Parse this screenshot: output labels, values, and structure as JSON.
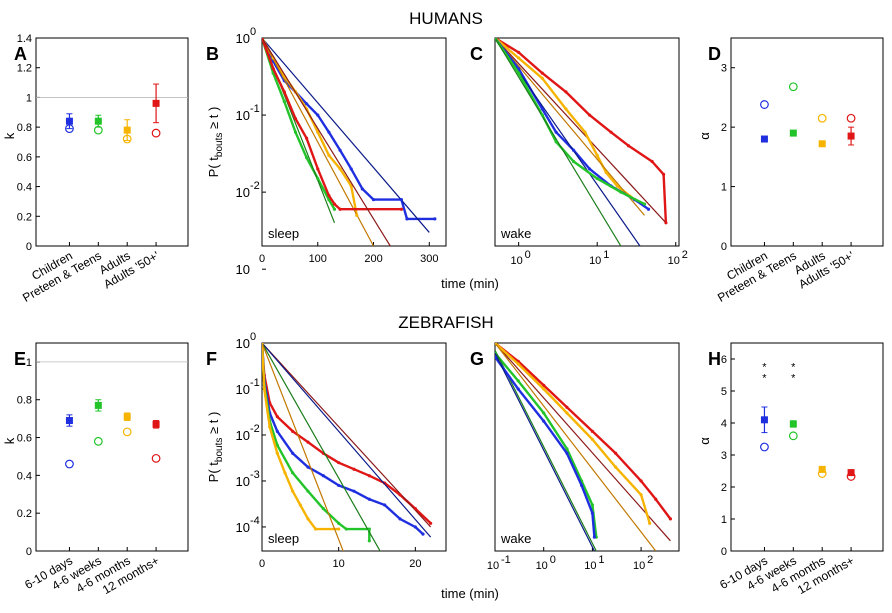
{
  "titles": {
    "top": "HUMANS",
    "bottom": "ZEBRAFISH"
  },
  "colors": {
    "blue": "#1f2fe0",
    "green": "#22c42a",
    "orange": "#f6b400",
    "red": "#e01616",
    "navy": "#0a1a8a",
    "darkgreen": "#1a7d1a",
    "darkorange": "#c27800",
    "darkred": "#8b1a1a"
  },
  "chart_data": [
    {
      "id": "A",
      "type": "scatter",
      "ylabel": "k",
      "ylim": [
        0,
        1.4
      ],
      "yticks": [
        "0",
        "0.2",
        "0.4",
        "0.6",
        "0.8",
        "1",
        "1.2",
        "1.4"
      ],
      "reference_line": 1,
      "categories": [
        "Children",
        "Preteen & Teens",
        "Adults",
        "Adults '50+'"
      ],
      "series": [
        {
          "name": "filled",
          "values": [
            0.84,
            0.84,
            0.78,
            0.96
          ],
          "err": [
            0.05,
            0.04,
            0.07,
            0.13
          ]
        },
        {
          "name": "open",
          "values": [
            0.79,
            0.78,
            0.72,
            0.76
          ]
        }
      ]
    },
    {
      "id": "B",
      "type": "line",
      "inset": "sleep",
      "ylabel_main": "P( t",
      "ylabel_sub": "bouts",
      "ylabel_end": " ≥ t )",
      "xlabel": "time (min)",
      "xlim": [
        0,
        330
      ],
      "xticks": [
        "0",
        "100",
        "200",
        "300"
      ],
      "yscale": "log",
      "ylim": [
        0.002,
        1
      ],
      "yticks": [
        "10",
        "10",
        "10",
        "10"
      ],
      "yexp": [
        "0",
        "-1",
        "-2",
        ""
      ],
      "series": [
        {
          "name": "blue",
          "points": [
            [
              0,
              1
            ],
            [
              20,
              0.5
            ],
            [
              40,
              0.28
            ],
            [
              60,
              0.2
            ],
            [
              80,
              0.14
            ],
            [
              100,
              0.1
            ],
            [
              120,
              0.06
            ],
            [
              140,
              0.035
            ],
            [
              160,
              0.02
            ],
            [
              180,
              0.011
            ],
            [
              200,
              0.008
            ],
            [
              250,
              0.008
            ],
            [
              260,
              0.0045
            ],
            [
              310,
              0.0045
            ]
          ],
          "fit": [
            [
              0,
              1
            ],
            [
              300,
              0.003
            ]
          ]
        },
        {
          "name": "green",
          "points": [
            [
              0,
              1
            ],
            [
              20,
              0.35
            ],
            [
              40,
              0.15
            ],
            [
              60,
              0.06
            ],
            [
              80,
              0.028
            ],
            [
              100,
              0.015
            ],
            [
              120,
              0.008
            ],
            [
              130,
              0.006
            ]
          ],
          "fit": [
            [
              0,
              1
            ],
            [
              130,
              0.004
            ]
          ]
        },
        {
          "name": "orange",
          "points": [
            [
              0,
              1
            ],
            [
              20,
              0.55
            ],
            [
              40,
              0.32
            ],
            [
              60,
              0.2
            ],
            [
              80,
              0.12
            ],
            [
              100,
              0.06
            ],
            [
              120,
              0.03
            ],
            [
              140,
              0.02
            ],
            [
              160,
              0.012
            ],
            [
              170,
              0.005
            ]
          ],
          "fit": [
            [
              0,
              1
            ],
            [
              200,
              0.002
            ]
          ]
        },
        {
          "name": "red",
          "points": [
            [
              0,
              1
            ],
            [
              20,
              0.4
            ],
            [
              40,
              0.2
            ],
            [
              60,
              0.09
            ],
            [
              80,
              0.05
            ],
            [
              100,
              0.02
            ],
            [
              120,
              0.009
            ],
            [
              130,
              0.007
            ],
            [
              140,
              0.006
            ],
            [
              250,
              0.006
            ]
          ],
          "fit": [
            [
              0,
              1
            ],
            [
              230,
              0.002
            ]
          ]
        }
      ]
    },
    {
      "id": "C",
      "type": "line",
      "inset": "wake",
      "xscale": "log",
      "xlim": [
        0.5,
        110
      ],
      "xticks": [
        "10",
        "10",
        "10"
      ],
      "xexp": [
        "0",
        "1",
        "2"
      ],
      "yscale": "log",
      "ylim": [
        0.002,
        1
      ],
      "series": [
        {
          "name": "red",
          "points": [
            [
              0.5,
              1
            ],
            [
              1,
              0.65
            ],
            [
              2,
              0.35
            ],
            [
              4,
              0.2
            ],
            [
              8,
              0.1
            ],
            [
              15,
              0.06
            ],
            [
              25,
              0.04
            ],
            [
              50,
              0.025
            ],
            [
              70,
              0.017
            ],
            [
              75,
              0.004
            ]
          ],
          "fit": [
            [
              0.5,
              1
            ],
            [
              75,
              0.004
            ]
          ]
        },
        {
          "name": "orange",
          "points": [
            [
              0.5,
              1
            ],
            [
              1,
              0.55
            ],
            [
              2,
              0.3
            ],
            [
              4,
              0.12
            ],
            [
              7,
              0.06
            ],
            [
              10,
              0.03
            ],
            [
              13,
              0.018
            ],
            [
              18,
              0.012
            ],
            [
              30,
              0.008
            ]
          ],
          "fit": [
            [
              0.5,
              1
            ],
            [
              40,
              0.005
            ]
          ]
        },
        {
          "name": "blue",
          "points": [
            [
              0.5,
              1
            ],
            [
              1,
              0.4
            ],
            [
              2,
              0.12
            ],
            [
              3,
              0.06
            ],
            [
              5,
              0.035
            ],
            [
              8,
              0.02
            ],
            [
              15,
              0.012
            ],
            [
              30,
              0.008
            ],
            [
              45,
              0.006
            ]
          ],
          "fit": [
            [
              0.5,
              1
            ],
            [
              35,
              0.002
            ]
          ]
        },
        {
          "name": "green",
          "points": [
            [
              0.5,
              1
            ],
            [
              1,
              0.35
            ],
            [
              2,
              0.1
            ],
            [
              3,
              0.045
            ],
            [
              5,
              0.025
            ],
            [
              10,
              0.015
            ],
            [
              20,
              0.01
            ],
            [
              40,
              0.007
            ]
          ],
          "fit": [
            [
              0.5,
              1
            ],
            [
              20,
              0.002
            ]
          ]
        }
      ]
    },
    {
      "id": "D",
      "type": "scatter",
      "ylabel": "α",
      "ylim": [
        0,
        3.5
      ],
      "yticks": [
        "0",
        "1",
        "2",
        "3"
      ],
      "categories": [
        "Children",
        "Preteen & Teens",
        "Adults",
        "Adults '50+'"
      ],
      "series": [
        {
          "name": "filled",
          "values": [
            1.8,
            1.9,
            1.72,
            1.85
          ],
          "err": [
            0,
            0,
            0,
            0.15
          ]
        },
        {
          "name": "open",
          "values": [
            2.38,
            2.68,
            2.15,
            2.15
          ]
        }
      ]
    },
    {
      "id": "E",
      "type": "scatter",
      "ylabel": "k",
      "ylim": [
        0,
        1.1
      ],
      "yticks": [
        "0",
        "0.2",
        "0.4",
        "0.6",
        "0.8",
        "1"
      ],
      "reference_line": 1,
      "categories": [
        "6-10 days",
        "4-6 weeks",
        "4-6 months",
        "12 months+"
      ],
      "series": [
        {
          "name": "filled",
          "values": [
            0.69,
            0.77,
            0.71,
            0.67
          ],
          "err": [
            0.03,
            0.03,
            0.02,
            0.02
          ]
        },
        {
          "name": "open",
          "values": [
            0.46,
            0.58,
            0.63,
            0.49
          ]
        }
      ]
    },
    {
      "id": "F",
      "type": "line",
      "inset": "sleep",
      "ylabel_main": "P( t",
      "ylabel_sub": "bouts",
      "ylabel_end": " ≥ t )",
      "xlabel": "time (min)",
      "xlim": [
        0,
        24
      ],
      "xticks": [
        "0",
        "10",
        "20"
      ],
      "yscale": "log",
      "ylim": [
        3e-05,
        1
      ],
      "yticks": [
        "10",
        "10",
        "10",
        "10",
        "10"
      ],
      "yexp": [
        "0",
        "-1",
        "-2",
        "-3",
        "-4"
      ],
      "series": [
        {
          "name": "red",
          "points": [
            [
              0,
              1
            ],
            [
              0.3,
              0.2
            ],
            [
              1,
              0.05
            ],
            [
              2,
              0.025
            ],
            [
              4,
              0.012
            ],
            [
              6,
              0.007
            ],
            [
              8,
              0.004
            ],
            [
              10,
              0.0025
            ],
            [
              12,
              0.0018
            ],
            [
              14,
              0.0013
            ],
            [
              16,
              0.0009
            ],
            [
              18,
              0.0005
            ],
            [
              20,
              0.00025
            ],
            [
              22,
              0.00012
            ]
          ],
          "fit": [
            [
              0,
              1
            ],
            [
              22,
              0.0001
            ]
          ]
        },
        {
          "name": "blue",
          "points": [
            [
              0,
              1
            ],
            [
              0.3,
              0.15
            ],
            [
              1,
              0.03
            ],
            [
              2,
              0.012
            ],
            [
              4,
              0.004
            ],
            [
              6,
              0.002
            ],
            [
              8,
              0.0013
            ],
            [
              10,
              0.0008
            ],
            [
              12,
              0.0006
            ],
            [
              14,
              0.0004
            ],
            [
              16,
              0.0003
            ],
            [
              18,
              0.00015
            ],
            [
              20,
              0.0001
            ],
            [
              21,
              7e-05
            ]
          ],
          "fit": [
            [
              0,
              1
            ],
            [
              22,
              6e-05
            ]
          ]
        },
        {
          "name": "green",
          "points": [
            [
              0,
              1
            ],
            [
              0.3,
              0.12
            ],
            [
              1,
              0.02
            ],
            [
              2,
              0.006
            ],
            [
              4,
              0.0015
            ],
            [
              6,
              0.0006
            ],
            [
              8,
              0.00025
            ],
            [
              10,
              0.00012
            ],
            [
              11,
              9e-05
            ],
            [
              14,
              9e-05
            ],
            [
              14,
              5e-05
            ]
          ],
          "fit": [
            [
              0,
              1
            ],
            [
              16,
              2e-05
            ]
          ]
        },
        {
          "name": "orange",
          "points": [
            [
              0,
              1
            ],
            [
              0.3,
              0.1
            ],
            [
              1,
              0.015
            ],
            [
              2,
              0.004
            ],
            [
              3,
              0.0015
            ],
            [
              4,
              0.0006
            ],
            [
              5,
              0.0003
            ],
            [
              6,
              0.00015
            ],
            [
              7,
              9e-05
            ],
            [
              10,
              9e-05
            ]
          ],
          "fit": [
            [
              0,
              1
            ],
            [
              11,
              2e-05
            ]
          ]
        }
      ]
    },
    {
      "id": "G",
      "type": "line",
      "inset": "wake",
      "xscale": "log",
      "xlim": [
        0.1,
        600
      ],
      "xticks": [
        "10",
        "10",
        "10",
        "10"
      ],
      "xexp": [
        "-1",
        "0",
        "1",
        "2"
      ],
      "yscale": "log",
      "ylim": [
        3e-05,
        1
      ],
      "series": [
        {
          "name": "red",
          "points": [
            [
              0.1,
              1
            ],
            [
              0.3,
              0.4
            ],
            [
              1,
              0.12
            ],
            [
              3,
              0.04
            ],
            [
              10,
              0.012
            ],
            [
              30,
              0.004
            ],
            [
              100,
              0.001
            ],
            [
              200,
              0.0004
            ],
            [
              400,
              0.00015
            ]
          ],
          "fit": [
            [
              0.1,
              1
            ],
            [
              400,
              5e-05
            ]
          ]
        },
        {
          "name": "orange",
          "points": [
            [
              0.1,
              1
            ],
            [
              0.3,
              0.35
            ],
            [
              1,
              0.1
            ],
            [
              3,
              0.03
            ],
            [
              10,
              0.008
            ],
            [
              30,
              0.002
            ],
            [
              100,
              0.0005
            ],
            [
              150,
              0.00012
            ]
          ],
          "fit": [
            [
              0.1,
              1
            ],
            [
              200,
              3e-05
            ]
          ]
        },
        {
          "name": "green",
          "points": [
            [
              0.1,
              0.6
            ],
            [
              0.3,
              0.15
            ],
            [
              1,
              0.03
            ],
            [
              3,
              0.005
            ],
            [
              6,
              0.001
            ],
            [
              10,
              0.0003
            ],
            [
              12,
              6e-05
            ]
          ],
          "fit": [
            [
              0.1,
              0.7
            ],
            [
              12,
              3e-05
            ]
          ]
        },
        {
          "name": "blue",
          "points": [
            [
              0.1,
              0.5
            ],
            [
              0.3,
              0.1
            ],
            [
              1,
              0.02
            ],
            [
              3,
              0.004
            ],
            [
              6,
              0.0008
            ],
            [
              10,
              0.0002
            ],
            [
              11,
              6e-05
            ]
          ],
          "fit": [
            [
              0.1,
              0.6
            ],
            [
              11,
              3e-05
            ]
          ]
        }
      ]
    },
    {
      "id": "H",
      "type": "scatter",
      "ylabel": "α",
      "ylim": [
        0,
        6.5
      ],
      "yticks": [
        "0",
        "1",
        "2",
        "3",
        "4",
        "5",
        "6"
      ],
      "categories": [
        "6-10 days",
        "4-6 weeks",
        "4-6 months",
        "12 months+"
      ],
      "series": [
        {
          "name": "filled",
          "values": [
            4.1,
            3.97,
            2.55,
            2.45
          ],
          "err": [
            0.4,
            0.1,
            0.06,
            0.06
          ]
        },
        {
          "name": "open",
          "values": [
            3.25,
            3.6,
            2.42,
            2.33
          ]
        }
      ],
      "markers": {
        "red_star": [
          5.8,
          5.8
        ],
        "orange_star": [
          5.45,
          5.45
        ]
      }
    }
  ]
}
